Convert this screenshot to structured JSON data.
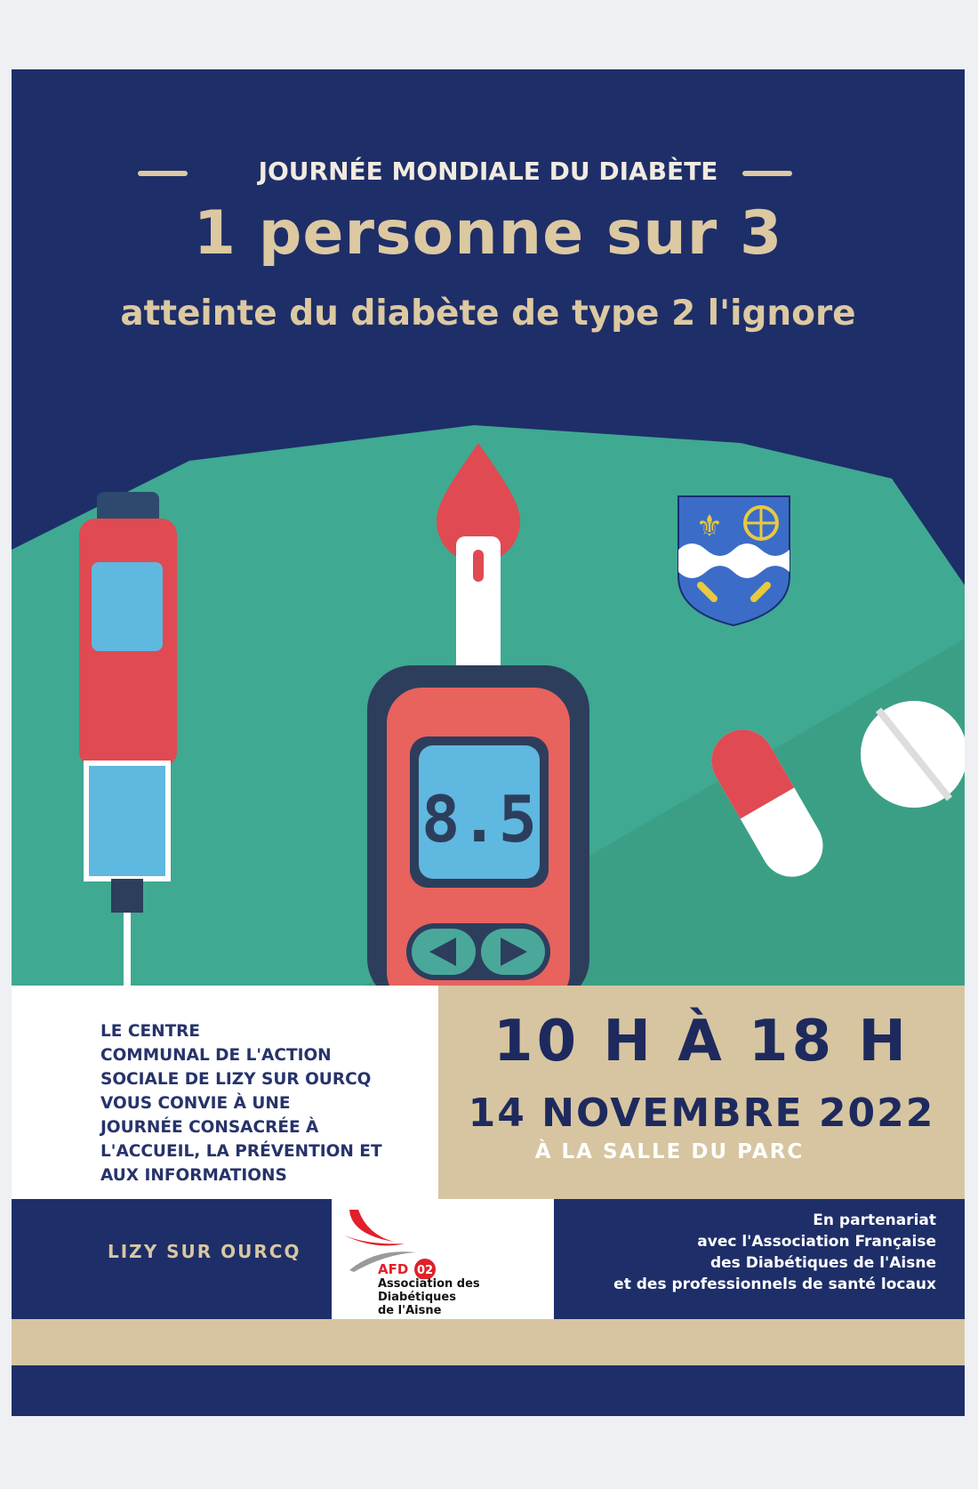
{
  "header": {
    "kicker": "JOURNÉE MONDIALE DU DIABÈTE",
    "headline": "1 personne sur 3",
    "subheadline": "atteinte du diabète de type 2 l'ignore"
  },
  "illustration": {
    "meter_reading": "8.5",
    "icons": [
      "insulin-pen",
      "blood-drop",
      "glucose-meter",
      "capsule",
      "pill",
      "coat-of-arms"
    ]
  },
  "invitation": {
    "lines": [
      "LE CENTRE",
      "COMMUNAL DE L'ACTION",
      "SOCIALE DE LIZY SUR OURCQ",
      "VOUS CONVIE À UNE",
      "JOURNÉE CONSACRÉE À",
      "L'ACCUEIL, LA PRÉVENTION ET",
      "AUX INFORMATIONS"
    ]
  },
  "event": {
    "time": "10 H À 18 H",
    "date": "14 NOVEMBRE 2022",
    "venue": "À LA SALLE DU PARC"
  },
  "footer": {
    "town": "LIZY SUR OURCQ",
    "logo": {
      "acronym": "AFD",
      "number": "02",
      "name_line1": "Association des Diabétiques",
      "name_line2": "de l'Aisne"
    },
    "partner_lines": [
      "En partenariat",
      "avec l'Association Française",
      "des Diabétiques de l'Aisne",
      "et des professionnels de santé locaux"
    ]
  },
  "colors": {
    "navy": "#1e2e68",
    "tan": "#d6c5a0",
    "teal": "#3fa992",
    "red": "#e04a52"
  }
}
